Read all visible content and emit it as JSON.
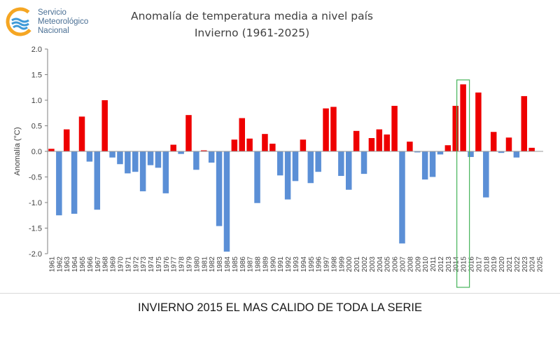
{
  "logo": {
    "line1": "Servicio",
    "line2": "Meteorológico",
    "line3": "Nacional"
  },
  "caption": "INVIERNO 2015 EL MAS CALIDO DE TODA LA SERIE",
  "colors": {
    "positive": "#ee0000",
    "negative": "#5b8fd6",
    "highlight": "#46b35a"
  },
  "chart_data": {
    "type": "bar",
    "title": "Anomalía de temperatura media a nivel país",
    "subtitle": "Invierno (1961-2025)",
    "xlabel": "",
    "ylabel": "Anomalía (°C)",
    "ylim": [
      -2.0,
      2.0
    ],
    "yticks": [
      "-2.0",
      "-1.5",
      "-1.0",
      "-0.5",
      "0.0",
      "0.5",
      "1.0",
      "1.5",
      "2.0"
    ],
    "grid": false,
    "highlight_year": "2015",
    "categories": [
      "1961",
      "1962",
      "1963",
      "1964",
      "1965",
      "1966",
      "1967",
      "1968",
      "1969",
      "1970",
      "1971",
      "1972",
      "1973",
      "1974",
      "1975",
      "1976",
      "1977",
      "1978",
      "1979",
      "1980",
      "1981",
      "1982",
      "1983",
      "1984",
      "1985",
      "1986",
      "1987",
      "1988",
      "1989",
      "1990",
      "1991",
      "1992",
      "1993",
      "1994",
      "1995",
      "1996",
      "1997",
      "1998",
      "1999",
      "2000",
      "2001",
      "2002",
      "2003",
      "2004",
      "2005",
      "2006",
      "2007",
      "2008",
      "2009",
      "2010",
      "2011",
      "2012",
      "2013",
      "2014",
      "2015",
      "2016",
      "2017",
      "2018",
      "2019",
      "2020",
      "2021",
      "2022",
      "2023",
      "2024",
      "2025"
    ],
    "values": [
      0.05,
      -1.25,
      0.43,
      -1.22,
      0.68,
      -0.2,
      -1.14,
      1.0,
      -0.12,
      -0.25,
      -0.43,
      -0.4,
      -0.78,
      -0.27,
      -0.32,
      -0.82,
      0.13,
      -0.05,
      0.71,
      -0.36,
      0.02,
      -0.22,
      -1.46,
      -1.96,
      0.23,
      0.65,
      0.25,
      -1.01,
      0.34,
      0.15,
      -0.47,
      -0.94,
      -0.58,
      0.23,
      -0.62,
      -0.4,
      0.84,
      0.87,
      -0.48,
      -0.75,
      0.4,
      -0.44,
      0.26,
      0.43,
      0.33,
      0.89,
      -1.8,
      0.19,
      -0.02,
      -0.55,
      -0.5,
      -0.06,
      0.12,
      0.89,
      1.31,
      -0.11,
      1.15,
      -0.9,
      0.38,
      -0.03,
      0.27,
      -0.12,
      1.08,
      0.07,
      0.0
    ]
  }
}
